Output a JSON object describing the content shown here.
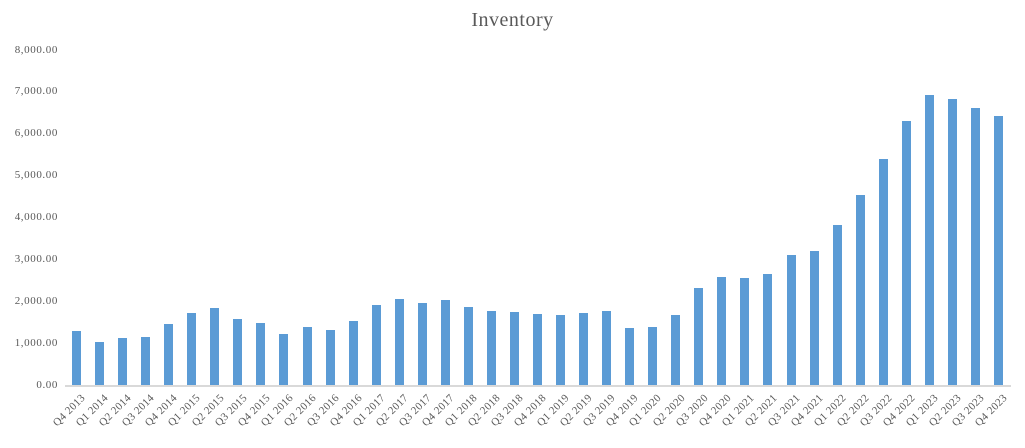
{
  "chart_data": {
    "type": "bar",
    "title": "Inventory",
    "xlabel": "",
    "ylabel": "",
    "ylim": [
      0,
      8000
    ],
    "ytick_step": 1000,
    "ytick_labels": [
      "0.00",
      "1,000.00",
      "2,000.00",
      "3,000.00",
      "4,000.00",
      "5,000.00",
      "6,000.00",
      "7,000.00",
      "8,000.00"
    ],
    "grid": false,
    "legend": false,
    "bar_color": "#5B9BD5",
    "axis_line_color": "#D9D9D9",
    "text_color": "#595959",
    "categories": [
      "Q4 2013",
      "Q1 2014",
      "Q2 2014",
      "Q3 2014",
      "Q4 2014",
      "Q1 2015",
      "Q2 2015",
      "Q3 2015",
      "Q4 2015",
      "Q1 2016",
      "Q2 2016",
      "Q3 2016",
      "Q4 2016",
      "Q1 2017",
      "Q2 2017",
      "Q3 2017",
      "Q4 2017",
      "Q1 2018",
      "Q2 2018",
      "Q3 2018",
      "Q4 2018",
      "Q1 2019",
      "Q2 2019",
      "Q3 2019",
      "Q4 2019",
      "Q1 2020",
      "Q2 2020",
      "Q3 2020",
      "Q4 2020",
      "Q1 2021",
      "Q2 2021",
      "Q3 2021",
      "Q4 2021",
      "Q1 2022",
      "Q2 2022",
      "Q3 2022",
      "Q4 2022",
      "Q1 2023",
      "Q2 2023",
      "Q3 2023",
      "Q4 2023"
    ],
    "values": [
      1290,
      1050,
      1140,
      1170,
      1460,
      1740,
      1850,
      1580,
      1490,
      1230,
      1400,
      1330,
      1540,
      1920,
      2060,
      1980,
      2040,
      1870,
      1780,
      1760,
      1710,
      1680,
      1730,
      1770,
      1370,
      1390,
      1690,
      2330,
      2580,
      2560,
      2660,
      3120,
      3220,
      3840,
      4540,
      5410,
      6320,
      6930,
      6850,
      6620,
      6430
    ]
  }
}
